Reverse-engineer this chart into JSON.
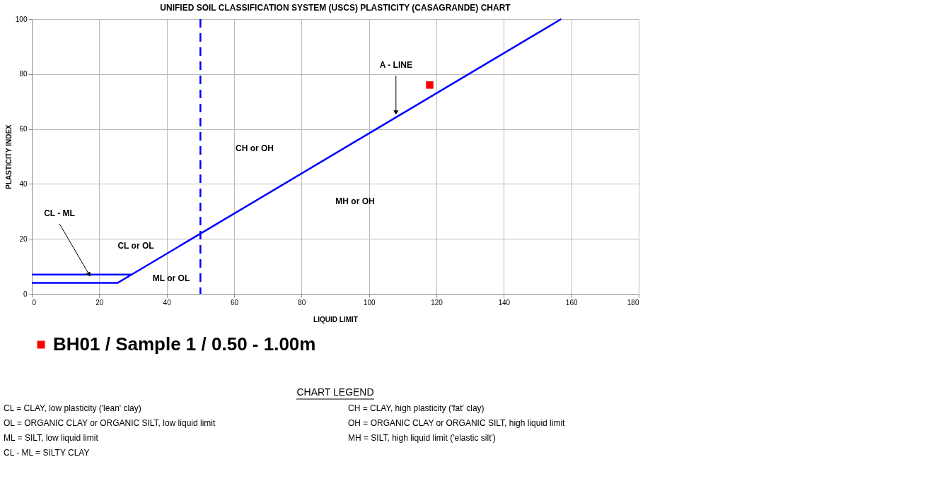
{
  "chart_data": {
    "type": "line",
    "title": "UNIFIED SOIL CLASSIFICATION SYSTEM (USCS) PLASTICITY (CASAGRANDE) CHART",
    "xlabel": "LIQUID LIMIT",
    "ylabel": "PLASTICITY INDEX",
    "xlim": [
      0,
      180
    ],
    "xticks": [
      0,
      20,
      40,
      60,
      80,
      100,
      120,
      140,
      160,
      180
    ],
    "ylim": [
      0,
      100
    ],
    "yticks": [
      0,
      20,
      40,
      60,
      80,
      100
    ],
    "grid": true,
    "legend": "bottom",
    "marker": "none",
    "line_style": "solid",
    "series": [
      {
        "color": "#0000ff",
        "x": [
          0,
          25.5,
          29.6,
          157
        ],
        "values": [
          4,
          4,
          7,
          100
        ]
      },
      {
        "color": "#0000ff",
        "x": [
          0,
          29.6
        ],
        "values": [
          7,
          7
        ]
      },
      {
        "type": "scatter",
        "name": "BH01 / Sample 1 / 0.50 - 1.00m",
        "color": "#ff0000",
        "marker": "square",
        "x": [
          118
        ],
        "values": [
          76
        ]
      }
    ],
    "ref_lines": [
      {
        "axis": "x",
        "value": 50,
        "color": "#0000ff",
        "line_style": "dashed"
      }
    ],
    "annotations": [
      {
        "text": "A - LINE",
        "x": 108,
        "y": 66
      },
      {
        "text": "CL - ML",
        "x": 17,
        "y": 7
      },
      "CH or OH",
      "MH or OH",
      "CL or OL",
      "ML or OL",
      "CHART LEGEND",
      "CL = CLAY, low plasticity ('lean' clay)",
      "CH = CLAY, high plasticity ('fat' clay)",
      "OL = ORGANIC CLAY or ORGANIC SILT, low liquid limit",
      "OH = ORGANIC CLAY or ORGANIC SILT, high liquid limit",
      "ML = SILT, low liquid limit",
      "MH = SILT, high liquid limit ('elastic silt')",
      "CL - ML = SILTY CLAY"
    ]
  }
}
